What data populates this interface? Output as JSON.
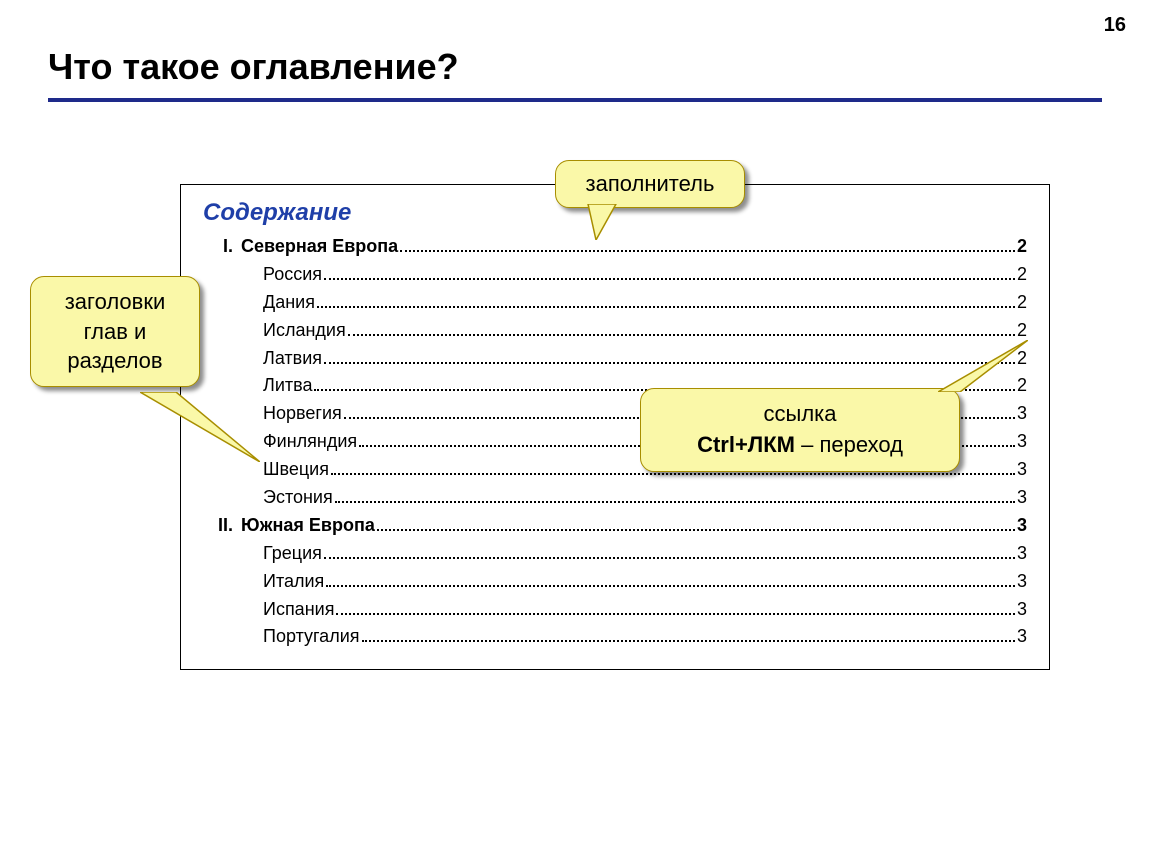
{
  "page_number": "16",
  "title": "Что такое оглавление?",
  "colors": {
    "rule": "#1e2a8a",
    "toc_title": "#1f3fa8",
    "callout_bg": "#faf8a8",
    "callout_border": "#a88e00",
    "callout_shadow": "rgba(0,0,0,0.45)"
  },
  "toc": {
    "title": "Содержание",
    "sections": [
      {
        "num": "I.",
        "label": "Северная Европа",
        "page": "2",
        "items": [
          {
            "label": "Россия",
            "page": "2"
          },
          {
            "label": "Дания",
            "page": "2"
          },
          {
            "label": "Исландия",
            "page": "2"
          },
          {
            "label": "Латвия",
            "page": "2"
          },
          {
            "label": "Литва",
            "page": "2"
          },
          {
            "label": "Норвегия",
            "page": "3"
          },
          {
            "label": "Финляндия",
            "page": "3"
          },
          {
            "label": "Швеция",
            "page": "3"
          },
          {
            "label": "Эстония",
            "page": "3"
          }
        ]
      },
      {
        "num": "II.",
        "label": "Южная Европа",
        "page": "3",
        "items": [
          {
            "label": "Греция",
            "page": "3"
          },
          {
            "label": "Италия",
            "page": "3"
          },
          {
            "label": "Испания",
            "page": "3"
          },
          {
            "label": "Португалия",
            "page": "3"
          }
        ]
      }
    ]
  },
  "callouts": {
    "filler": {
      "text": "заполнитель"
    },
    "headings": {
      "line1": "заголовки",
      "line2": "глав и",
      "line3": "разделов"
    },
    "link": {
      "line1": "ссылка",
      "line2_a": "Ctrl+ЛКМ",
      "line2_b": " – переход"
    }
  }
}
